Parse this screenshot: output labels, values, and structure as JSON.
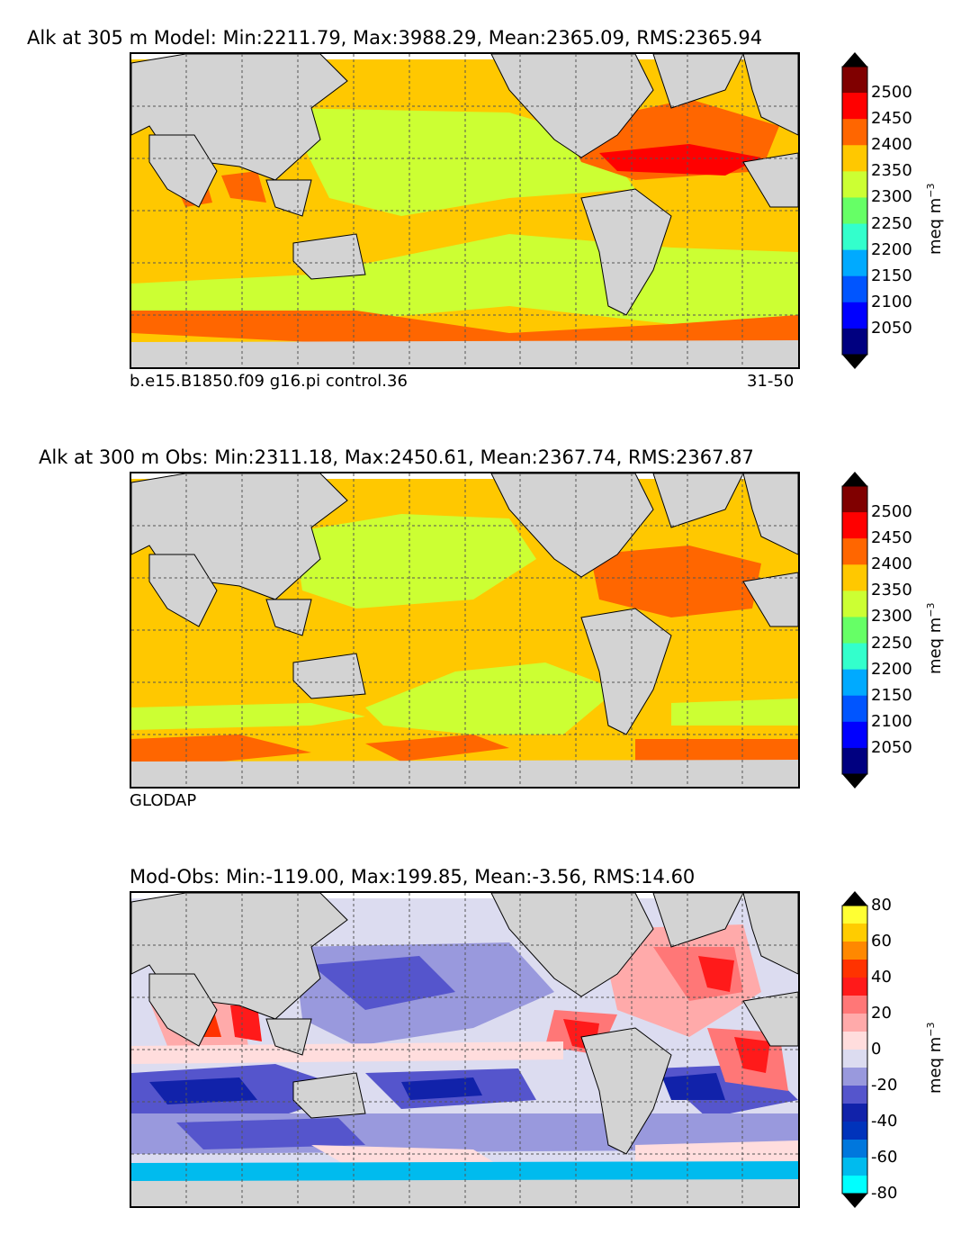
{
  "panels": [
    {
      "id": "model",
      "title": "Alk at 305 m Model: Min:2211.79, Max:3988.29, Mean:2365.09, RMS:2365.94",
      "footer_left": "b.e15.B1850.f09 g16.pi control.36",
      "footer_right": "31-50",
      "colorbar": {
        "ticks": [
          "2500",
          "2450",
          "2400",
          "2350",
          "2300",
          "2250",
          "2200",
          "2150",
          "2100",
          "2050"
        ],
        "colors": [
          "#800000",
          "#ff0000",
          "#ff6600",
          "#ffc800",
          "#ccff33",
          "#66ff66",
          "#33ffcc",
          "#00aaff",
          "#0055ff",
          "#0000ff",
          "#000080"
        ],
        "over_color": "#000000",
        "unit_main": "meq m",
        "unit_exp": "−3"
      }
    },
    {
      "id": "obs",
      "title": "Alk at 300 m Obs: Min:2311.18, Max:2450.61, Mean:2367.74, RMS:2367.87",
      "footer_left": "GLODAP",
      "colorbar": {
        "ticks": [
          "2500",
          "2450",
          "2400",
          "2350",
          "2300",
          "2250",
          "2200",
          "2150",
          "2100",
          "2050"
        ],
        "colors": [
          "#800000",
          "#ff0000",
          "#ff6600",
          "#ffc800",
          "#ccff33",
          "#66ff66",
          "#33ffcc",
          "#00aaff",
          "#0055ff",
          "#0000ff",
          "#000080"
        ],
        "over_color": "#000000",
        "unit_main": "meq m",
        "unit_exp": "−3"
      }
    },
    {
      "id": "diff",
      "title": "Mod-Obs: Min:-119.00, Max:199.85, Mean:-3.56, RMS:14.60",
      "colorbar": {
        "ticks": [
          "80",
          "60",
          "40",
          "20",
          "0",
          "-20",
          "-40",
          "-60",
          "-80"
        ],
        "colors": [
          "#ffff33",
          "#ffcc00",
          "#ff8800",
          "#ff3300",
          "#ff1a1a",
          "#ff7777",
          "#ffaaaa",
          "#ffdddd",
          "#dcdcf0",
          "#9999dd",
          "#5555cc",
          "#1122aa",
          "#0033bb",
          "#0077dd",
          "#00bbee",
          "#00ffff"
        ],
        "over_color": "#000000",
        "unit_main": "meq m",
        "unit_exp": "−3"
      }
    }
  ],
  "map_colors": {
    "land": "#d3d3d3",
    "coast": "#000000",
    "grid": "#555555"
  }
}
